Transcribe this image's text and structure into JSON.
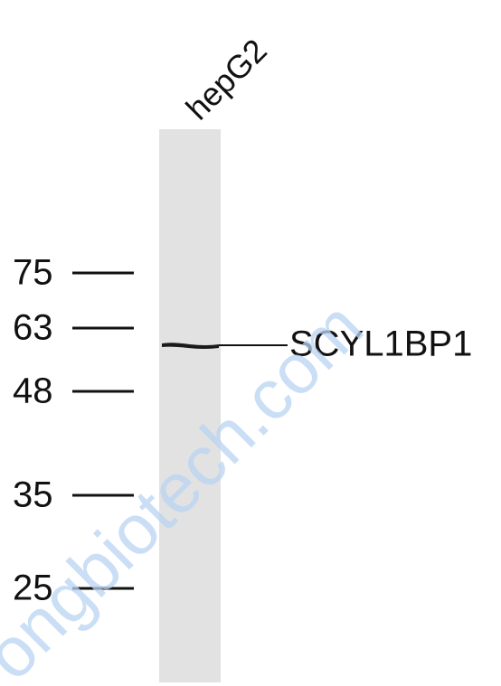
{
  "lane": {
    "label": "hepG2"
  },
  "markers": [
    "75",
    "63",
    "48",
    "35",
    "25"
  ],
  "band": {
    "label": "SCYL1BP1"
  },
  "watermark": "ongbiotech.com"
}
